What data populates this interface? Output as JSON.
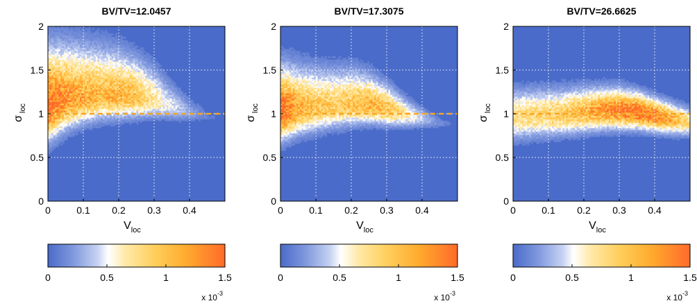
{
  "chart_data": [
    {
      "type": "heatmap",
      "title": "BV/TV=12.0457",
      "xlabel": {
        "main": "V",
        "sub": "loc"
      },
      "ylabel": {
        "main": "σ",
        "sub": "loc"
      },
      "xlim": [
        0,
        0.5
      ],
      "ylim": [
        0,
        2
      ],
      "xticks": [
        "0",
        "0.1",
        "0.2",
        "0.3",
        "0.4"
      ],
      "yticks": [
        "0",
        "0.5",
        "1",
        "1.5",
        "2"
      ],
      "grid": true,
      "reference_line": {
        "y": 1,
        "style": "dashed",
        "color": "#f5a623"
      },
      "density_ridge": [
        [
          0.0,
          1.08
        ],
        [
          0.05,
          1.15
        ],
        [
          0.1,
          1.18
        ],
        [
          0.15,
          1.2
        ],
        [
          0.2,
          1.2
        ],
        [
          0.25,
          1.18
        ],
        [
          0.3,
          1.15
        ],
        [
          0.35,
          1.08
        ],
        [
          0.4,
          1.02
        ],
        [
          0.45,
          0.97
        ],
        [
          0.5,
          0.95
        ]
      ],
      "density_spread_top": [
        0.72,
        0.68,
        0.64,
        0.6,
        0.55,
        0.5,
        0.42,
        0.3,
        0.2,
        0.12,
        0.06
      ],
      "density_spread_bottom": [
        0.4,
        0.35,
        0.3,
        0.28,
        0.26,
        0.23,
        0.2,
        0.16,
        0.12,
        0.08,
        0.05
      ],
      "density_peak": [
        1.0,
        0.82,
        0.72,
        0.66,
        0.7,
        0.62,
        0.45,
        0.3,
        0.16,
        0.07,
        0.03
      ]
    },
    {
      "type": "heatmap",
      "title": "BV/TV=17.3075",
      "xlabel": {
        "main": "V",
        "sub": "loc"
      },
      "ylabel": {
        "main": "σ",
        "sub": "loc"
      },
      "xlim": [
        0,
        0.5
      ],
      "ylim": [
        0,
        2
      ],
      "xticks": [
        "0",
        "0.1",
        "0.2",
        "0.3",
        "0.4"
      ],
      "yticks": [
        "0",
        "0.5",
        "1",
        "1.5",
        "2"
      ],
      "grid": true,
      "reference_line": {
        "y": 1,
        "style": "dashed",
        "color": "#f5a623"
      },
      "density_ridge": [
        [
          0.0,
          1.0
        ],
        [
          0.05,
          1.05
        ],
        [
          0.1,
          1.07
        ],
        [
          0.15,
          1.08
        ],
        [
          0.2,
          1.1
        ],
        [
          0.25,
          1.1
        ],
        [
          0.3,
          1.06
        ],
        [
          0.35,
          1.0
        ],
        [
          0.4,
          0.95
        ],
        [
          0.45,
          0.9
        ],
        [
          0.5,
          0.88
        ]
      ],
      "density_spread_top": [
        0.58,
        0.52,
        0.48,
        0.46,
        0.44,
        0.38,
        0.3,
        0.22,
        0.14,
        0.08,
        0.05
      ],
      "density_spread_bottom": [
        0.32,
        0.3,
        0.28,
        0.26,
        0.24,
        0.22,
        0.2,
        0.16,
        0.12,
        0.08,
        0.05
      ],
      "density_peak": [
        1.0,
        0.72,
        0.62,
        0.58,
        0.62,
        0.68,
        0.66,
        0.45,
        0.25,
        0.1,
        0.03
      ]
    },
    {
      "type": "heatmap",
      "title": "BV/TV=26.6625",
      "xlabel": {
        "main": "V",
        "sub": "loc"
      },
      "ylabel": {
        "main": "σ",
        "sub": "loc"
      },
      "xlim": [
        0,
        0.5
      ],
      "ylim": [
        0,
        2
      ],
      "xticks": [
        "0",
        "0.1",
        "0.2",
        "0.3",
        "0.4"
      ],
      "yticks": [
        "0",
        "0.5",
        "1",
        "1.5",
        "2"
      ],
      "grid": true,
      "reference_line": {
        "y": 1,
        "style": "dashed",
        "color": "#f5a623"
      },
      "density_ridge": [
        [
          0.0,
          0.97
        ],
        [
          0.05,
          0.98
        ],
        [
          0.1,
          0.99
        ],
        [
          0.15,
          1.0
        ],
        [
          0.2,
          1.02
        ],
        [
          0.25,
          1.04
        ],
        [
          0.3,
          1.04
        ],
        [
          0.35,
          1.02
        ],
        [
          0.4,
          0.98
        ],
        [
          0.45,
          0.94
        ],
        [
          0.5,
          0.9
        ]
      ],
      "density_spread_top": [
        0.34,
        0.33,
        0.32,
        0.31,
        0.3,
        0.28,
        0.27,
        0.25,
        0.22,
        0.2,
        0.18
      ],
      "density_spread_bottom": [
        0.28,
        0.27,
        0.26,
        0.25,
        0.24,
        0.23,
        0.22,
        0.2,
        0.19,
        0.18,
        0.16
      ],
      "density_peak": [
        0.5,
        0.52,
        0.55,
        0.6,
        0.68,
        0.8,
        0.9,
        0.95,
        0.88,
        0.7,
        0.5
      ]
    }
  ],
  "colorbar": {
    "ticks": [
      "0",
      "0.5",
      "1",
      "1.5"
    ],
    "range": [
      0,
      1.5
    ],
    "exponent_base": "x 10",
    "exponent_power": "-3",
    "colormap": [
      "#4a6bc9",
      "#7f97dd",
      "#c6d2f2",
      "#ffffff",
      "#ffe9a8",
      "#ffcf5c",
      "#ffab2e",
      "#ff6a2a"
    ]
  }
}
